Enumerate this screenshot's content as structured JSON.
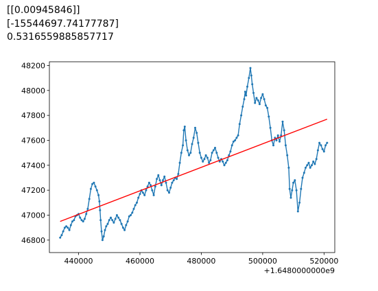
{
  "output_lines": [
    "[[0.00945846]]",
    "[-15544697.74177787]",
    "0.5316559885857717"
  ],
  "chart_data": {
    "type": "line",
    "title": "",
    "xlabel": "",
    "ylabel": "",
    "x_offset_label": "+1.6480000000e9",
    "xlim": [
      430500,
      523500
    ],
    "ylim": [
      46700,
      48230
    ],
    "xticks": [
      440000,
      460000,
      480000,
      500000,
      520000
    ],
    "xtick_labels": [
      "440000",
      "460000",
      "480000",
      "500000",
      "520000"
    ],
    "yticks": [
      46800,
      47000,
      47200,
      47400,
      47600,
      47800,
      48000,
      48200
    ],
    "ytick_labels": [
      "46800",
      "47000",
      "47200",
      "47400",
      "47600",
      "47800",
      "48000",
      "48200"
    ],
    "grid": false,
    "series": [
      {
        "kind": "line-with-markers",
        "color": "#1f77b4",
        "points": [
          [
            434000,
            46820
          ],
          [
            434500,
            46840
          ],
          [
            435000,
            46870
          ],
          [
            435500,
            46900
          ],
          [
            436000,
            46910
          ],
          [
            436500,
            46900
          ],
          [
            437000,
            46880
          ],
          [
            437500,
            46920
          ],
          [
            438000,
            46950
          ],
          [
            438500,
            46960
          ],
          [
            439000,
            46990
          ],
          [
            439500,
            47000
          ],
          [
            440000,
            47010
          ],
          [
            440500,
            46980
          ],
          [
            441000,
            46960
          ],
          [
            441500,
            46950
          ],
          [
            442000,
            46970
          ],
          [
            442500,
            47010
          ],
          [
            443000,
            47050
          ],
          [
            443500,
            47130
          ],
          [
            444000,
            47210
          ],
          [
            444500,
            47250
          ],
          [
            445000,
            47260
          ],
          [
            445500,
            47230
          ],
          [
            446000,
            47200
          ],
          [
            446500,
            47160
          ],
          [
            446800,
            47110
          ],
          [
            447000,
            47040
          ],
          [
            447200,
            46960
          ],
          [
            447500,
            46870
          ],
          [
            447800,
            46800
          ],
          [
            448200,
            46830
          ],
          [
            448600,
            46880
          ],
          [
            449000,
            46910
          ],
          [
            449500,
            46930
          ],
          [
            450000,
            46960
          ],
          [
            450500,
            46980
          ],
          [
            451000,
            46960
          ],
          [
            451500,
            46940
          ],
          [
            452000,
            46970
          ],
          [
            452500,
            47000
          ],
          [
            453000,
            46980
          ],
          [
            453500,
            46960
          ],
          [
            454000,
            46930
          ],
          [
            454500,
            46900
          ],
          [
            455000,
            46880
          ],
          [
            455500,
            46920
          ],
          [
            456000,
            46950
          ],
          [
            456500,
            46990
          ],
          [
            457000,
            47000
          ],
          [
            457500,
            47020
          ],
          [
            458000,
            47050
          ],
          [
            458500,
            47080
          ],
          [
            459000,
            47100
          ],
          [
            459500,
            47140
          ],
          [
            460000,
            47170
          ],
          [
            460500,
            47200
          ],
          [
            461000,
            47180
          ],
          [
            461500,
            47160
          ],
          [
            462000,
            47200
          ],
          [
            462500,
            47230
          ],
          [
            463000,
            47260
          ],
          [
            463500,
            47240
          ],
          [
            464000,
            47200
          ],
          [
            464500,
            47160
          ],
          [
            465000,
            47230
          ],
          [
            465500,
            47290
          ],
          [
            466000,
            47320
          ],
          [
            466500,
            47280
          ],
          [
            467000,
            47240
          ],
          [
            467500,
            47280
          ],
          [
            468000,
            47310
          ],
          [
            468500,
            47260
          ],
          [
            469000,
            47200
          ],
          [
            469500,
            47180
          ],
          [
            470000,
            47220
          ],
          [
            470500,
            47260
          ],
          [
            471000,
            47280
          ],
          [
            471500,
            47300
          ],
          [
            472000,
            47290
          ],
          [
            472500,
            47330
          ],
          [
            473000,
            47420
          ],
          [
            473500,
            47500
          ],
          [
            474000,
            47560
          ],
          [
            474300,
            47680
          ],
          [
            474600,
            47710
          ],
          [
            475000,
            47600
          ],
          [
            475500,
            47520
          ],
          [
            476000,
            47480
          ],
          [
            476500,
            47500
          ],
          [
            477000,
            47570
          ],
          [
            477500,
            47620
          ],
          [
            478000,
            47700
          ],
          [
            478500,
            47660
          ],
          [
            479000,
            47580
          ],
          [
            479500,
            47500
          ],
          [
            480000,
            47460
          ],
          [
            480500,
            47430
          ],
          [
            481000,
            47450
          ],
          [
            481500,
            47480
          ],
          [
            482000,
            47460
          ],
          [
            482500,
            47420
          ],
          [
            483000,
            47440
          ],
          [
            483500,
            47500
          ],
          [
            484000,
            47520
          ],
          [
            484500,
            47540
          ],
          [
            485000,
            47500
          ],
          [
            485500,
            47460
          ],
          [
            486000,
            47430
          ],
          [
            486500,
            47450
          ],
          [
            487000,
            47430
          ],
          [
            487500,
            47400
          ],
          [
            488000,
            47420
          ],
          [
            488500,
            47440
          ],
          [
            489000,
            47480
          ],
          [
            489500,
            47510
          ],
          [
            490000,
            47560
          ],
          [
            490500,
            47590
          ],
          [
            491000,
            47600
          ],
          [
            491500,
            47620
          ],
          [
            492000,
            47640
          ],
          [
            492500,
            47730
          ],
          [
            493000,
            47800
          ],
          [
            493500,
            47870
          ],
          [
            494000,
            47930
          ],
          [
            494300,
            47990
          ],
          [
            494600,
            47960
          ],
          [
            495000,
            48030
          ],
          [
            495500,
            48100
          ],
          [
            496000,
            48180
          ],
          [
            496300,
            48120
          ],
          [
            496600,
            48050
          ],
          [
            497000,
            47980
          ],
          [
            497500,
            47900
          ],
          [
            498000,
            47940
          ],
          [
            498500,
            47920
          ],
          [
            499000,
            47890
          ],
          [
            499500,
            47940
          ],
          [
            500000,
            47970
          ],
          [
            500500,
            47930
          ],
          [
            501000,
            47880
          ],
          [
            501500,
            47860
          ],
          [
            502000,
            47790
          ],
          [
            502500,
            47700
          ],
          [
            503000,
            47600
          ],
          [
            503500,
            47560
          ],
          [
            504000,
            47620
          ],
          [
            504500,
            47600
          ],
          [
            505000,
            47640
          ],
          [
            505500,
            47590
          ],
          [
            506000,
            47640
          ],
          [
            506500,
            47750
          ],
          [
            507000,
            47680
          ],
          [
            507500,
            47560
          ],
          [
            508000,
            47480
          ],
          [
            508500,
            47380
          ],
          [
            508800,
            47210
          ],
          [
            509200,
            47140
          ],
          [
            509600,
            47200
          ],
          [
            510000,
            47260
          ],
          [
            510500,
            47280
          ],
          [
            511000,
            47200
          ],
          [
            511500,
            47030
          ],
          [
            512000,
            47100
          ],
          [
            512500,
            47210
          ],
          [
            513000,
            47300
          ],
          [
            513500,
            47340
          ],
          [
            514000,
            47380
          ],
          [
            514500,
            47400
          ],
          [
            515000,
            47420
          ],
          [
            515500,
            47380
          ],
          [
            516000,
            47400
          ],
          [
            516500,
            47430
          ],
          [
            517000,
            47410
          ],
          [
            517500,
            47450
          ],
          [
            518000,
            47520
          ],
          [
            518500,
            47580
          ],
          [
            519000,
            47560
          ],
          [
            519500,
            47530
          ],
          [
            520000,
            47510
          ],
          [
            520500,
            47560
          ],
          [
            521000,
            47580
          ]
        ]
      },
      {
        "kind": "regression-line",
        "color": "#ff0000",
        "points": [
          [
            434000,
            46950
          ],
          [
            521000,
            47770
          ]
        ]
      }
    ]
  }
}
